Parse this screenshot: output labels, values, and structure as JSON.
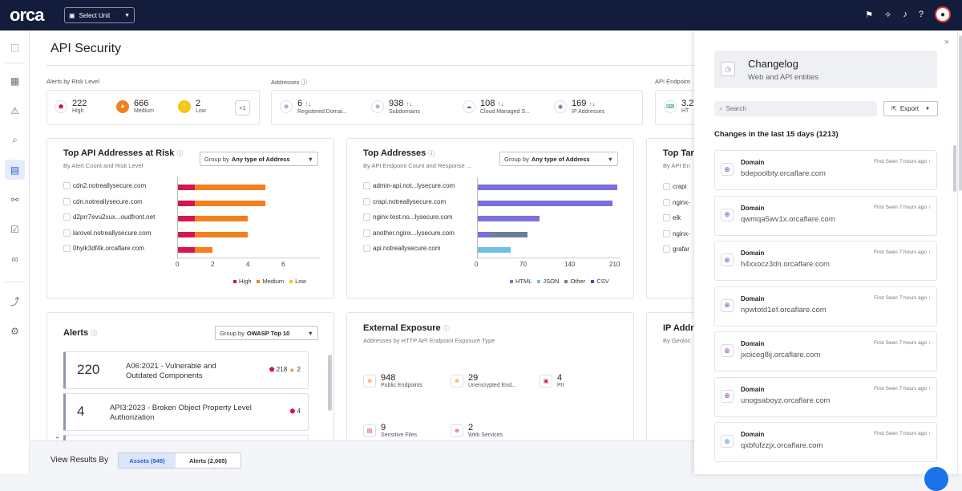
{
  "topbar": {
    "logo": "orca",
    "unit_select": "Select Unit"
  },
  "page": {
    "title": "API Security"
  },
  "risk": {
    "label": "Alerts by Risk Level",
    "items": [
      {
        "value": "222",
        "label": "High",
        "color": "#d6164f"
      },
      {
        "value": "666",
        "label": "Medium",
        "color": "#f2801e"
      },
      {
        "value": "2",
        "label": "Low",
        "color": "#f5c518"
      }
    ],
    "more": "+1"
  },
  "addresses": {
    "label": "Addresses",
    "items": [
      {
        "value": "6",
        "label": "Registered Domai..."
      },
      {
        "value": "938",
        "label": "Subdomains"
      },
      {
        "value": "108",
        "label": "Cloud Managed S..."
      },
      {
        "value": "169",
        "label": "IP Addresses"
      }
    ]
  },
  "endpoints": {
    "label": "API Endpoint",
    "value": "3.2",
    "label2": "HT"
  },
  "top_risk": {
    "title": "Top API Addresses at Risk",
    "subtitle": "By Alert Count and Risk Level",
    "group_label": "Group by",
    "group_value": "Any type of Address",
    "rows": [
      "cdn2.notreallysecure.com",
      "cdn.notreallysecure.com",
      "d2prr7evu2xux...oudfront.net",
      "larovel.notreallysecure.com",
      "0hyik3df4k.orcaflare.com"
    ],
    "ticks": [
      "0",
      "2",
      "4",
      "6"
    ],
    "legend": [
      "High",
      "Medium",
      "Low"
    ]
  },
  "top_addr": {
    "title": "Top Addresses",
    "subtitle": "By API Endpoint Count and Response ...",
    "group_label": "Group by",
    "group_value": "Any type of Address",
    "rows": [
      "admin-api.not...lysecure.com",
      "crapi.notreallysecure.com",
      "nginx-test.no...lysecure.com",
      "another.nginx...lysecure.com",
      "api.notreallysecure.com"
    ],
    "ticks": [
      "0",
      "70",
      "140",
      "210"
    ],
    "legend": [
      "HTML",
      "JSON",
      "Other",
      "CSV"
    ]
  },
  "top_tar": {
    "title": "Top Tar",
    "subtitle": "By API En",
    "rows": [
      "crapi",
      "nginx-",
      "elk",
      "nginx-",
      "grafar"
    ]
  },
  "alerts": {
    "title": "Alerts",
    "group_label": "Group by",
    "group_value": "OWASP Top 10",
    "rows": [
      {
        "count": "220",
        "text1": "A06:2021 - Vulnerable and",
        "text2": "Outdated Components",
        "high": "218",
        "med": "2"
      },
      {
        "count": "4",
        "text1": "API3:2023 - Broken Object Property Level",
        "text2": "Authorization",
        "high": "4"
      }
    ]
  },
  "exposure": {
    "title": "External Exposure",
    "subtitle": "Addresses by HTTP API Endpoint Exposure Type",
    "items": [
      {
        "value": "948",
        "label": "Public Endpoints"
      },
      {
        "value": "29",
        "label": "Unencrypted End..."
      },
      {
        "value": "4",
        "label": "PII"
      },
      {
        "value": "9",
        "label": "Sensitive Files"
      },
      {
        "value": "2",
        "label": "Web Services"
      }
    ]
  },
  "ipaddr": {
    "title": "IP Addr",
    "subtitle": "By Geoloc"
  },
  "view_results": {
    "label": "View Results By",
    "assets": "Assets (949)",
    "alerts": "Alerts (2,065)"
  },
  "changelog": {
    "title": "Changelog",
    "subtitle": "Web and API entities",
    "search_placeholder": "Search",
    "export": "Export",
    "changes": "Changes in the last 15 days (1213)",
    "items": [
      {
        "type": "Domain",
        "value": "bdepoolbty.orcaflare.com",
        "seen": "First Seen 7 hours ago"
      },
      {
        "type": "Domain",
        "value": "qwmqa5wv1x.orcaflare.com",
        "seen": "First Seen 7 hours ago"
      },
      {
        "type": "Domain",
        "value": "h4xxocz3dn.orcaflare.com",
        "seen": "First Seen 7 hours ago"
      },
      {
        "type": "Domain",
        "value": "npwtotd1ef.orcaflare.com",
        "seen": "First Seen 7 hours ago"
      },
      {
        "type": "Domain",
        "value": "jxoiceg8ij.orcaflare.com",
        "seen": "First Seen 7 hours ago"
      },
      {
        "type": "Domain",
        "value": "unogsaboyz.orcaflare.com",
        "seen": "First Seen 7 hours ago"
      },
      {
        "type": "Domain",
        "value": "qxbfufzzjx.orcaflare.com",
        "seen": "First Seen 7 hours ago"
      }
    ]
  }
}
